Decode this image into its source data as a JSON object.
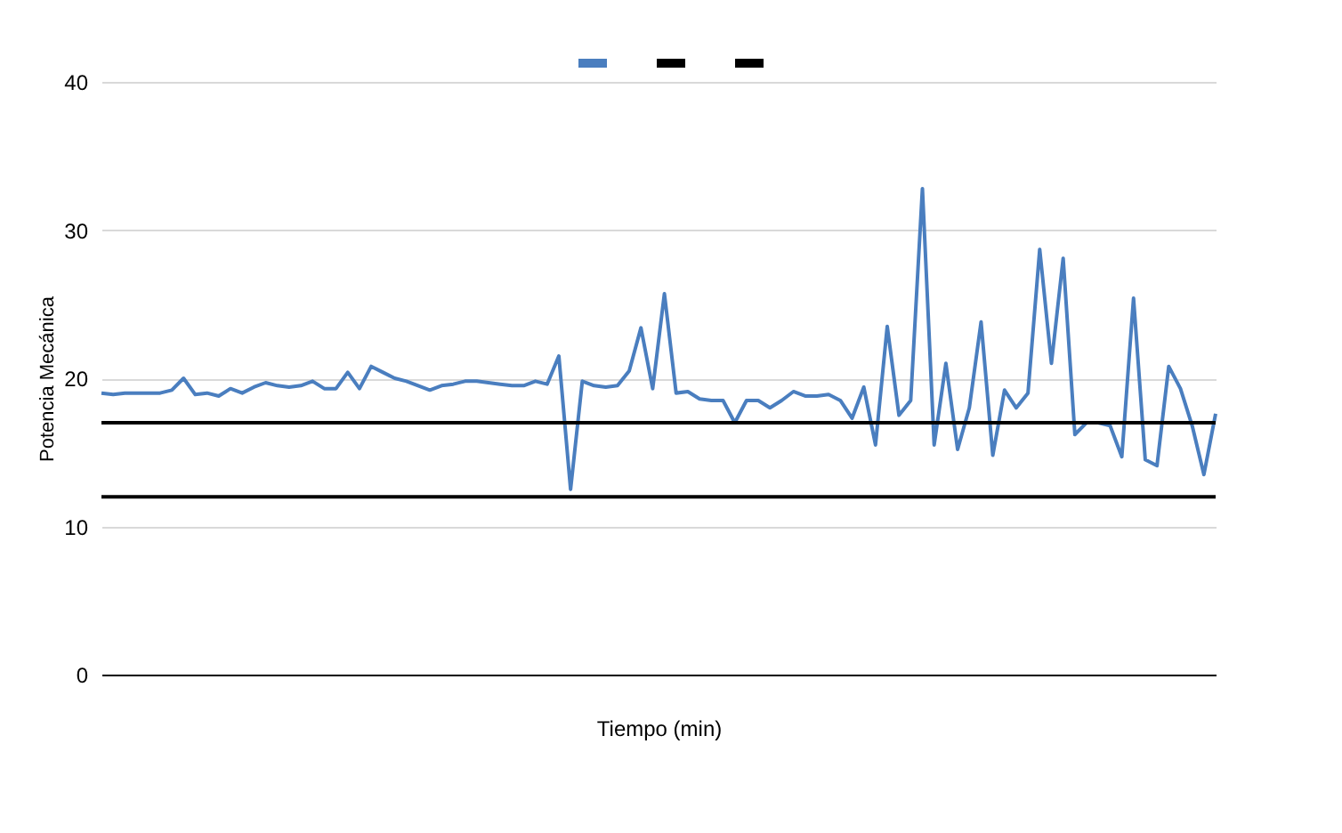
{
  "chart_data": {
    "type": "line",
    "xlabel": "Tiempo (min)",
    "ylabel": "Potencia Mecánica",
    "ylim": [
      0,
      40
    ],
    "yticks": [
      0,
      10,
      20,
      30,
      40
    ],
    "grid": "y",
    "marker": "none",
    "categories": [
      null,
      null,
      null,
      null,
      null,
      null,
      null,
      null,
      null,
      null,
      null,
      null,
      null,
      null,
      null,
      null,
      null,
      null,
      null,
      null,
      null,
      null,
      null,
      null,
      null,
      null,
      null,
      null,
      null,
      null,
      null,
      null,
      null,
      null,
      null,
      null,
      null,
      null,
      null,
      null,
      null,
      null,
      null,
      null,
      null,
      null,
      null,
      null,
      null,
      null,
      null,
      null,
      null,
      null,
      null,
      null,
      null,
      null,
      null,
      null,
      null,
      null,
      null,
      null,
      null,
      null,
      null,
      null,
      null,
      null,
      null,
      null,
      null,
      null,
      null,
      null,
      null,
      null,
      null,
      null,
      null,
      null,
      null,
      null,
      null,
      null,
      null,
      null,
      null,
      null,
      null,
      null,
      null,
      null,
      null,
      null
    ],
    "series": [
      {
        "color": "#4a7ebf",
        "values": [
          19,
          18.9,
          19,
          19,
          19,
          19,
          19.2,
          20,
          18.9,
          19,
          18.8,
          19.3,
          19,
          19.4,
          19.7,
          19.5,
          19.4,
          19.5,
          19.8,
          19.3,
          19.3,
          20.4,
          19.3,
          20.8,
          20.4,
          20,
          19.8,
          19.5,
          19.2,
          19.5,
          19.6,
          19.8,
          19.8,
          19.7,
          19.6,
          19.5,
          19.5,
          19.8,
          19.6,
          21.5,
          12.5,
          19.8,
          19.5,
          19.4,
          19.5,
          20.5,
          23.4,
          19.3,
          25.7,
          19,
          19.1,
          18.6,
          18.5,
          18.5,
          17,
          18.5,
          18.5,
          18,
          18.5,
          19.1,
          18.8,
          18.8,
          18.9,
          18.5,
          17.3,
          19.4,
          15.5,
          23.5,
          17.5,
          18.5,
          32.8,
          15.5,
          21,
          15.2,
          18,
          23.8,
          14.8,
          19.2,
          18,
          19,
          28.7,
          21,
          28.1,
          16.2,
          17,
          17,
          16.8,
          14.7,
          25.4,
          14.5,
          14.1,
          20.8,
          19.3,
          16.8,
          13.5,
          17.6
        ]
      },
      {
        "color": "#000000",
        "values": [
          17,
          17,
          17,
          17,
          17,
          17,
          17,
          17,
          17,
          17,
          17,
          17,
          17,
          17,
          17,
          17,
          17,
          17,
          17,
          17,
          17,
          17,
          17,
          17,
          17,
          17,
          17,
          17,
          17,
          17,
          17,
          17,
          17,
          17,
          17,
          17,
          17,
          17,
          17,
          17,
          17,
          17,
          17,
          17,
          17,
          17,
          17,
          17,
          17,
          17,
          17,
          17,
          17,
          17,
          17,
          17,
          17,
          17,
          17,
          17,
          17,
          17,
          17,
          17,
          17,
          17,
          17,
          17,
          17,
          17,
          17,
          17,
          17,
          17,
          17,
          17,
          17,
          17,
          17,
          17,
          17,
          17,
          17,
          17,
          17,
          17,
          17,
          17,
          17,
          17,
          17,
          17,
          17,
          17,
          17,
          17
        ]
      },
      {
        "color": "#000000",
        "values": [
          12,
          12,
          12,
          12,
          12,
          12,
          12,
          12,
          12,
          12,
          12,
          12,
          12,
          12,
          12,
          12,
          12,
          12,
          12,
          12,
          12,
          12,
          12,
          12,
          12,
          12,
          12,
          12,
          12,
          12,
          12,
          12,
          12,
          12,
          12,
          12,
          12,
          12,
          12,
          12,
          12,
          12,
          12,
          12,
          12,
          12,
          12,
          12,
          12,
          12,
          12,
          12,
          12,
          12,
          12,
          12,
          12,
          12,
          12,
          12,
          12,
          12,
          12,
          12,
          12,
          12,
          12,
          12,
          12,
          12,
          12,
          12,
          12,
          12,
          12,
          12,
          12,
          12,
          12,
          12,
          12,
          12,
          12,
          12,
          12,
          12,
          12,
          12,
          12,
          12,
          12,
          12,
          12,
          12,
          12,
          12
        ]
      }
    ]
  }
}
